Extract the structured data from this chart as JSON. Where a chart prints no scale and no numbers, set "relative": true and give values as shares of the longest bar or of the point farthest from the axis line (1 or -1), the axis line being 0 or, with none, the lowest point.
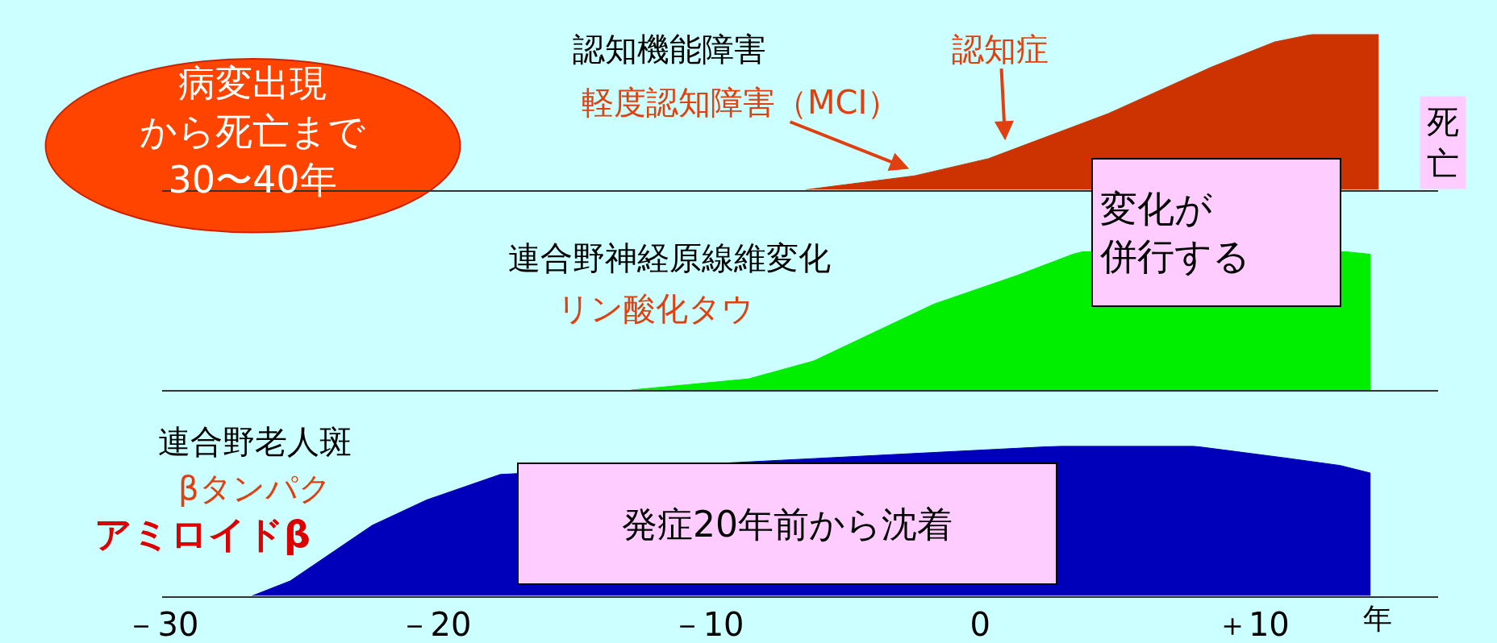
{
  "chart_data": [
    {
      "type": "area",
      "relative": true,
      "color": "#cc3300",
      "xlim": [
        -30,
        16.8
      ],
      "tick_labels": false,
      "x": [
        -6.4,
        -2.4,
        0.3,
        4.7,
        8.5,
        10.8,
        12.2,
        14.6,
        14.6
      ],
      "values": [
        0,
        0.09,
        0.2,
        0.49,
        0.79,
        0.95,
        1,
        1,
        0
      ],
      "annotations": [
        "病変出現から死亡まで30〜40年",
        "認知機能障害",
        "軽度認知障害（MCI）",
        "認知症",
        "死亡",
        "変化が併行する"
      ]
    },
    {
      "type": "area",
      "relative": true,
      "color": "#00ee00",
      "xlim": [
        -30,
        16.8
      ],
      "tick_labels": false,
      "x": [
        -12.8,
        -8.5,
        -6.1,
        -1.7,
        1.4,
        3.4,
        3.8,
        13.3,
        14.3,
        14.3
      ],
      "values": [
        0,
        0.08,
        0.21,
        0.62,
        0.83,
        0.98,
        1,
        1,
        0.98,
        0
      ],
      "annotations": [
        "連合野神経原線維変化",
        "リン酸化タウ"
      ]
    },
    {
      "type": "area",
      "relative": true,
      "color": "#0000bb",
      "xlim": [
        -30,
        16.8
      ],
      "tick_labels": "x",
      "xlabel": "年",
      "xticks": [
        {
          "value": -30,
          "label": "－30"
        },
        {
          "value": -20,
          "label": "－20"
        },
        {
          "value": -10,
          "label": "－10"
        },
        0,
        {
          "value": 10,
          "label": "＋10"
        }
      ],
      "x": [
        -26.7,
        -25.3,
        -22.3,
        -20.3,
        -17.6,
        3.0,
        7.8,
        11.2,
        13.2,
        14.3,
        14.3
      ],
      "values": [
        0,
        0.1,
        0.47,
        0.64,
        0.81,
        1,
        1,
        0.92,
        0.87,
        0.82,
        0
      ],
      "annotations": [
        "連合野老人斑",
        "βタンパク",
        "アミロイドβ",
        "発症20年前から沈着"
      ]
    }
  ]
}
